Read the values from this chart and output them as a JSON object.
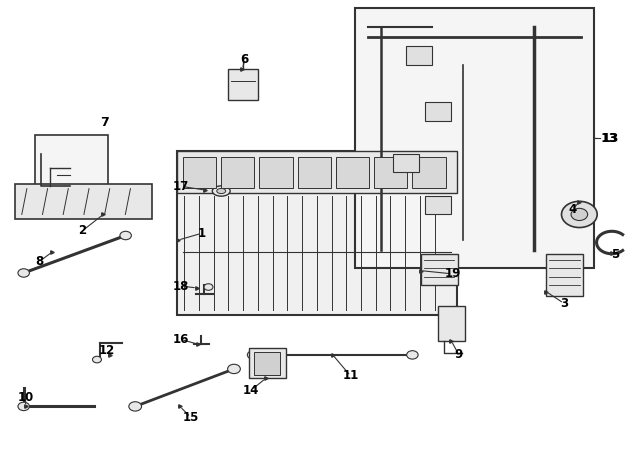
{
  "bg_color": "#ffffff",
  "line_color": "#333333",
  "label_color": "#000000",
  "fig_width": 6.4,
  "fig_height": 4.71,
  "dpi": 100
}
